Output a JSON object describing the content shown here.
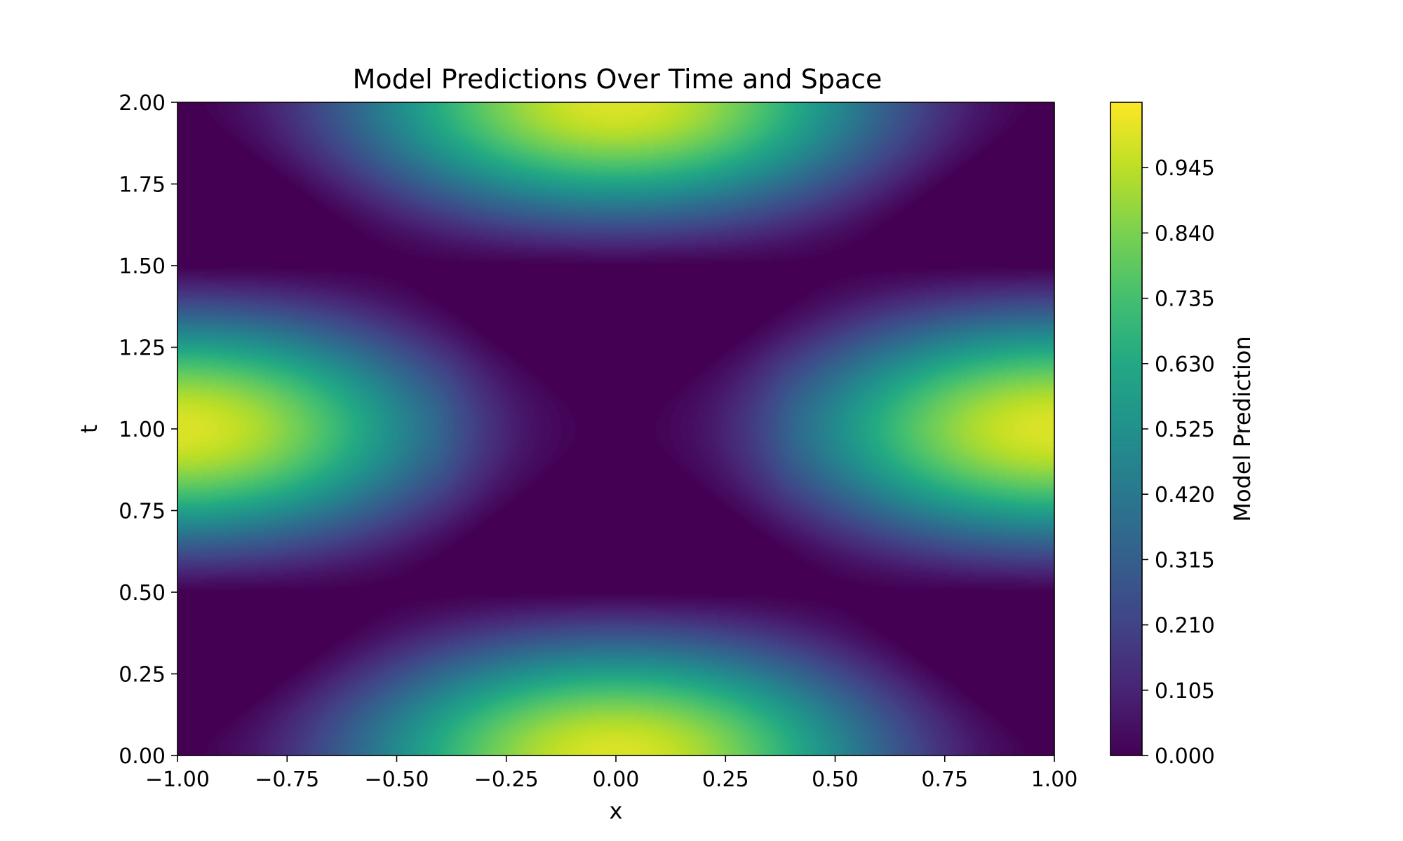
{
  "chart_data": {
    "type": "heatmap",
    "title": "Model Predictions Over Time and Space",
    "xlabel": "x",
    "ylabel": "t",
    "xlim": [
      -1.0,
      1.0
    ],
    "ylim": [
      0.0,
      2.0
    ],
    "x_ticks": [
      "−1.00",
      "−0.75",
      "−0.50",
      "−0.25",
      "0.00",
      "0.25",
      "0.50",
      "0.75",
      "1.00"
    ],
    "x_tick_values": [
      -1.0,
      -0.75,
      -0.5,
      -0.25,
      0.0,
      0.25,
      0.5,
      0.75,
      1.0
    ],
    "y_ticks": [
      "0.00",
      "0.25",
      "0.50",
      "0.75",
      "1.00",
      "1.25",
      "1.50",
      "1.75",
      "2.00"
    ],
    "y_tick_values": [
      0.0,
      0.25,
      0.5,
      0.75,
      1.0,
      1.25,
      1.5,
      1.75,
      2.0
    ],
    "colormap": "viridis",
    "colorbar": {
      "label": "Model Prediction",
      "range": [
        0.0,
        1.05
      ],
      "ticks": [
        "0.000",
        "0.105",
        "0.210",
        "0.315",
        "0.420",
        "0.525",
        "0.630",
        "0.735",
        "0.840",
        "0.945"
      ],
      "tick_values": [
        0.0,
        0.105,
        0.21,
        0.315,
        0.42,
        0.525,
        0.63,
        0.735,
        0.84,
        0.945
      ]
    },
    "peaks": [
      {
        "x": 0.0,
        "t": 0.0,
        "value": 1.0
      },
      {
        "x": 0.0,
        "t": 2.0,
        "value": 1.0
      },
      {
        "x": -1.0,
        "t": 1.0,
        "value": 1.0
      },
      {
        "x": 1.0,
        "t": 1.0,
        "value": 1.0
      }
    ],
    "minimum_region": {
      "x": 0.0,
      "t": 1.0,
      "value": 0.0
    },
    "grid": false
  }
}
